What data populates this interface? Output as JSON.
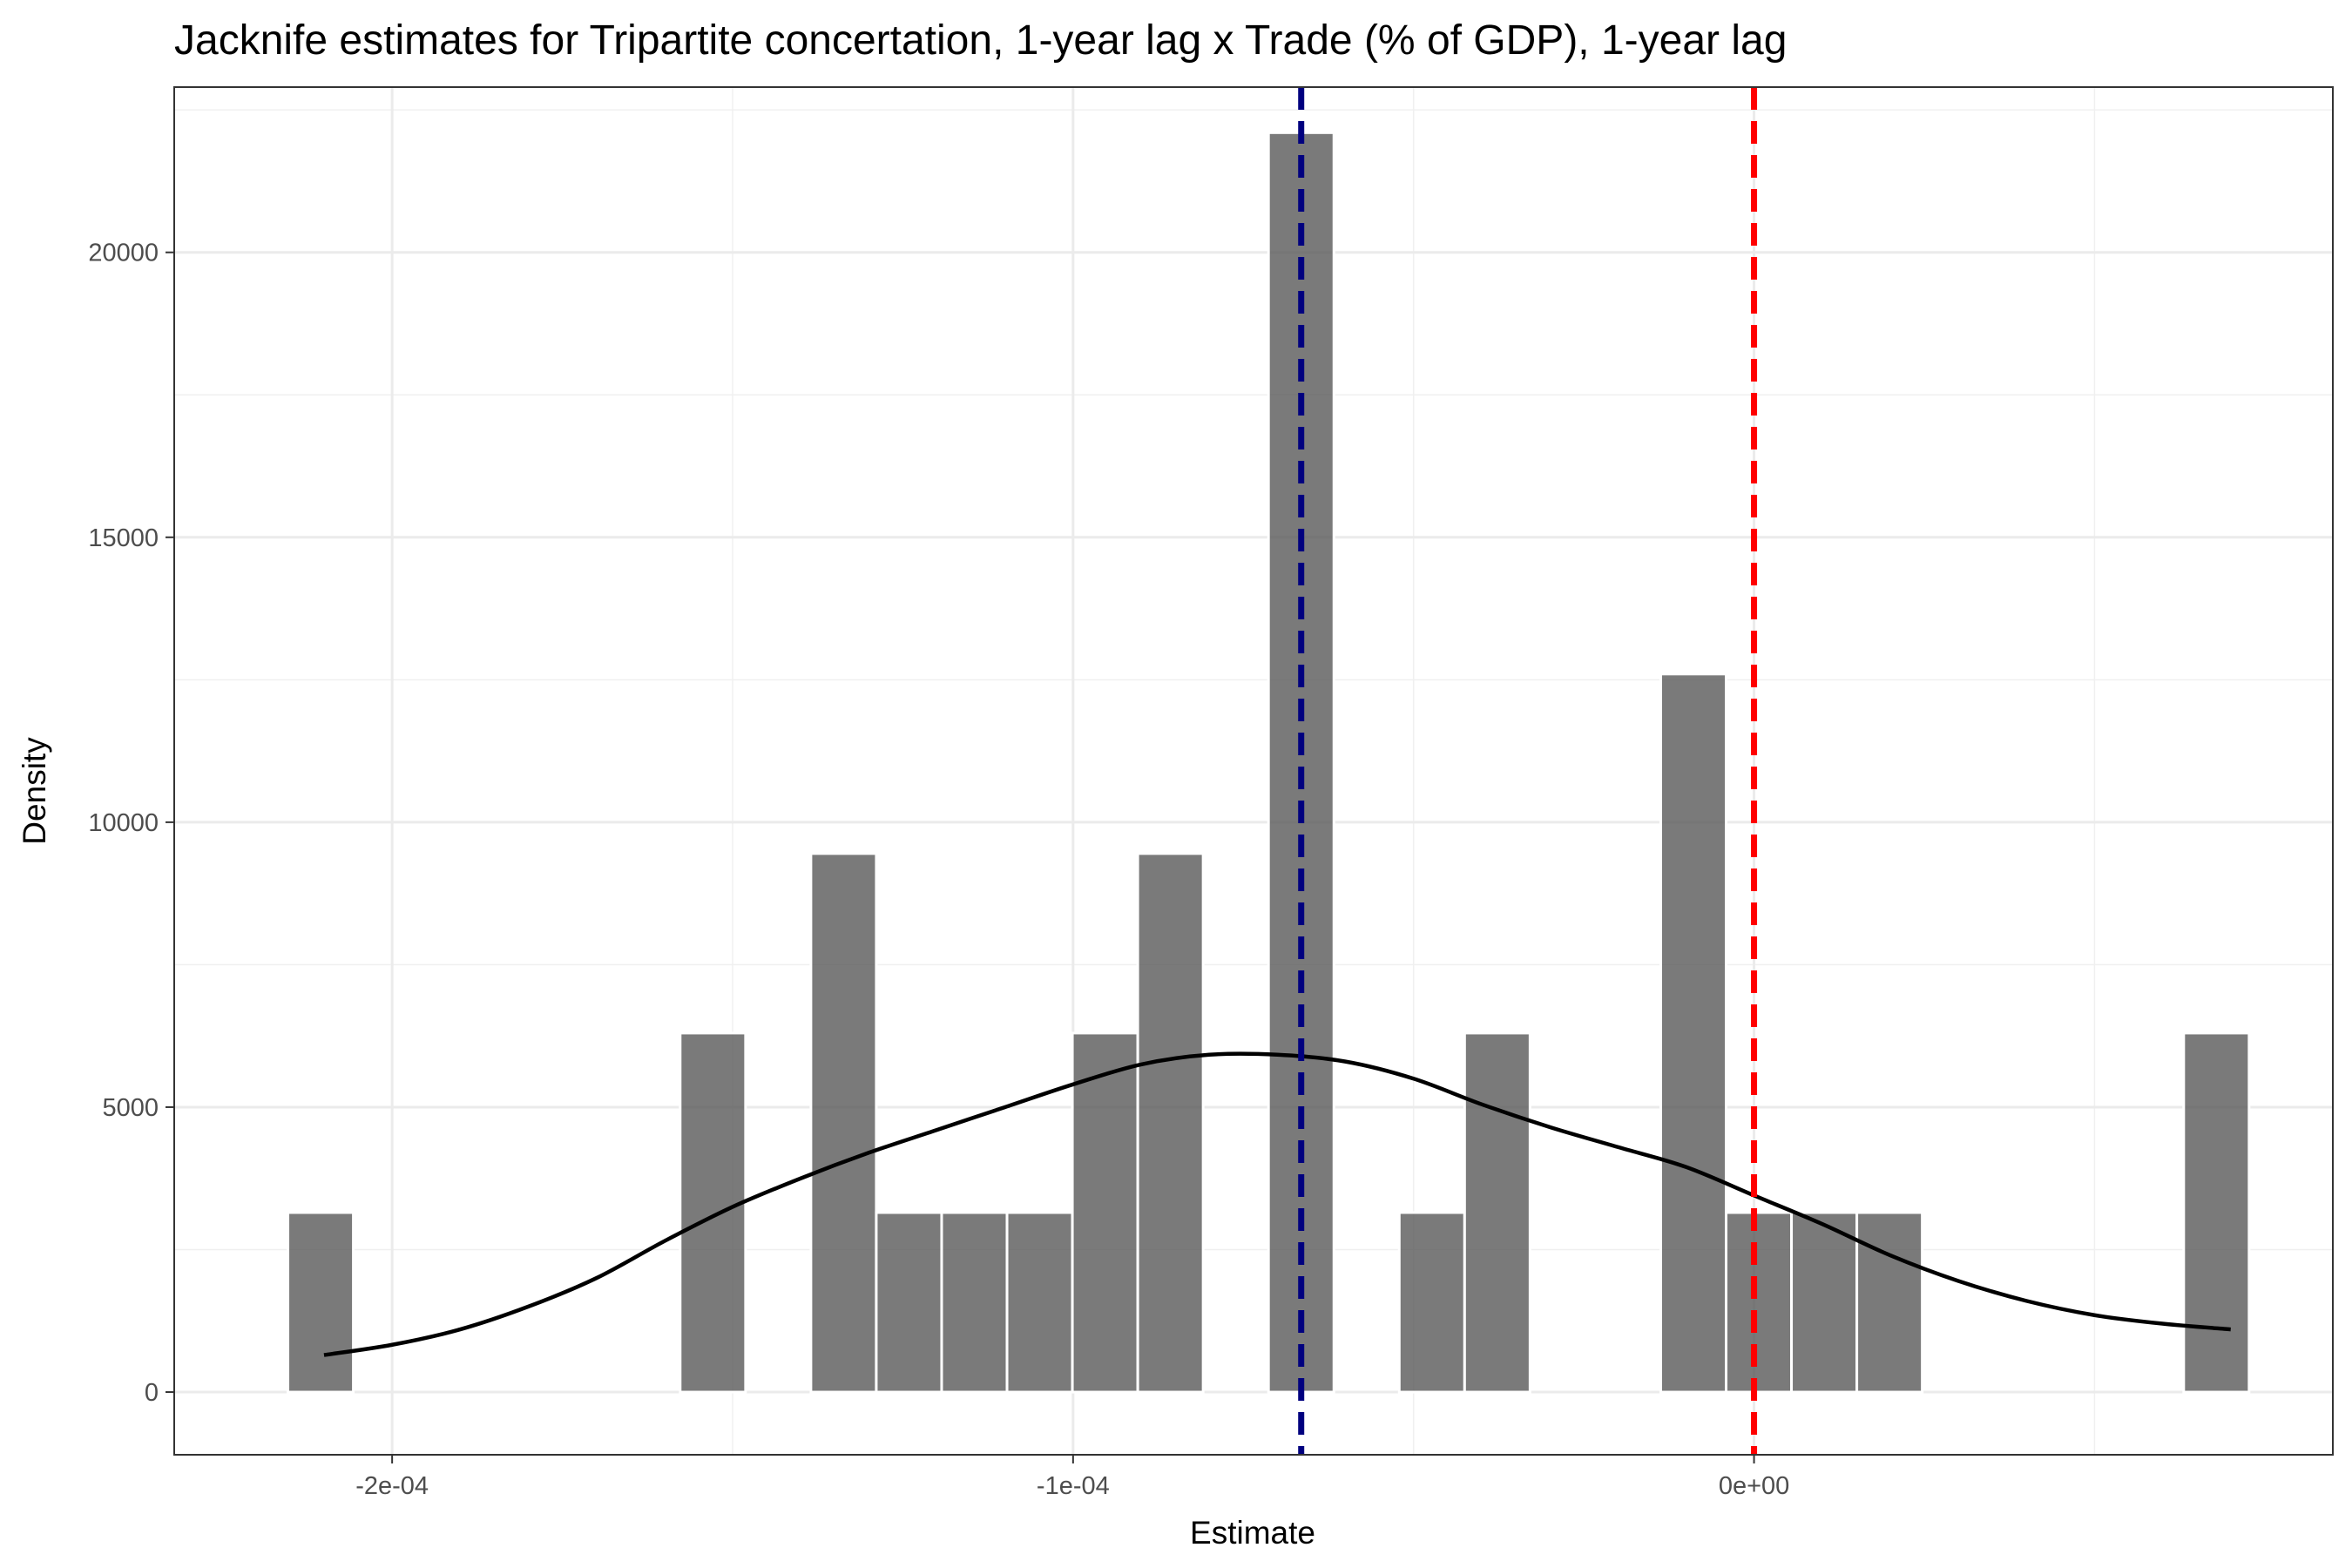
{
  "chart_data": {
    "type": "bar",
    "title": "Jacknife estimates for Tripartite concertation, 1-year lag x Trade (% of GDP), 1-year lag",
    "xlabel": "Estimate",
    "ylabel": "Density",
    "xlim": [
      -0.000232,
      8.5e-05
    ],
    "ylim": [
      -1100,
      22900
    ],
    "x_ticks": [
      {
        "value": -0.0002,
        "label": "-2e-04"
      },
      {
        "value": -0.0001,
        "label": "-1e-04"
      },
      {
        "value": 0,
        "label": "0e+00"
      }
    ],
    "y_ticks": [
      {
        "value": 0,
        "label": "0"
      },
      {
        "value": 5000,
        "label": "5000"
      },
      {
        "value": 10000,
        "label": "10000"
      },
      {
        "value": 15000,
        "label": "15000"
      },
      {
        "value": 20000,
        "label": "20000"
      }
    ],
    "grid": true,
    "bin_width": 9.6e-06,
    "bins": [
      {
        "center": -0.0002105,
        "density": 3150
      },
      {
        "center": -0.0002009,
        "density": 0
      },
      {
        "center": -0.0001913,
        "density": 0
      },
      {
        "center": -0.0001817,
        "density": 0
      },
      {
        "center": -0.0001721,
        "density": 0
      },
      {
        "center": -0.0001625,
        "density": 0
      },
      {
        "center": -0.0001529,
        "density": 6300
      },
      {
        "center": -0.0001433,
        "density": 0
      },
      {
        "center": -0.0001337,
        "density": 9450
      },
      {
        "center": -0.0001241,
        "density": 3150
      },
      {
        "center": -0.0001145,
        "density": 3150
      },
      {
        "center": -0.0001049,
        "density": 3150
      },
      {
        "center": -9.53e-05,
        "density": 6300
      },
      {
        "center": -8.57e-05,
        "density": 9450
      },
      {
        "center": -7.61e-05,
        "density": 0
      },
      {
        "center": -6.65e-05,
        "density": 22100
      },
      {
        "center": -5.69e-05,
        "density": 0
      },
      {
        "center": -4.73e-05,
        "density": 3150
      },
      {
        "center": -3.77e-05,
        "density": 6300
      },
      {
        "center": -2.81e-05,
        "density": 0
      },
      {
        "center": -1.85e-05,
        "density": 0
      },
      {
        "center": -8.9e-06,
        "density": 12600
      },
      {
        "center": 7e-07,
        "density": 3150
      },
      {
        "center": 1.03e-05,
        "density": 3150
      },
      {
        "center": 1.99e-05,
        "density": 3150
      },
      {
        "center": 2.95e-05,
        "density": 0
      },
      {
        "center": 3.91e-05,
        "density": 0
      },
      {
        "center": 4.87e-05,
        "density": 0
      },
      {
        "center": 5.83e-05,
        "density": 0
      },
      {
        "center": 6.79e-05,
        "density": 6300
      }
    ],
    "density_curve": {
      "x": [
        -0.00021,
        -0.0002,
        -0.00019,
        -0.00018,
        -0.00017,
        -0.00016,
        -0.00015,
        -0.00014,
        -0.00013,
        -0.00012,
        -0.00011,
        -0.0001,
        -9e-05,
        -8e-05,
        -7e-05,
        -6e-05,
        -5e-05,
        -4e-05,
        -3e-05,
        -2e-05,
        -1e-05,
        0,
        1e-05,
        2e-05,
        3e-05,
        4e-05,
        5e-05,
        6e-05,
        7e-05
      ],
      "y": [
        650,
        830,
        1100,
        1500,
        2000,
        2650,
        3250,
        3750,
        4200,
        4600,
        5000,
        5400,
        5750,
        5920,
        5920,
        5800,
        5500,
        5050,
        4650,
        4300,
        3950,
        3450,
        2950,
        2400,
        1950,
        1600,
        1350,
        1200,
        1100
      ]
    },
    "reference_lines": [
      {
        "x": -6.65e-05,
        "color": "#00007f",
        "style": "dashed"
      },
      {
        "x": 0,
        "color": "#ff0000",
        "style": "dashed"
      }
    ],
    "bar_color": "#595959",
    "bar_opacity": 0.8,
    "curve_color": "#000000"
  }
}
